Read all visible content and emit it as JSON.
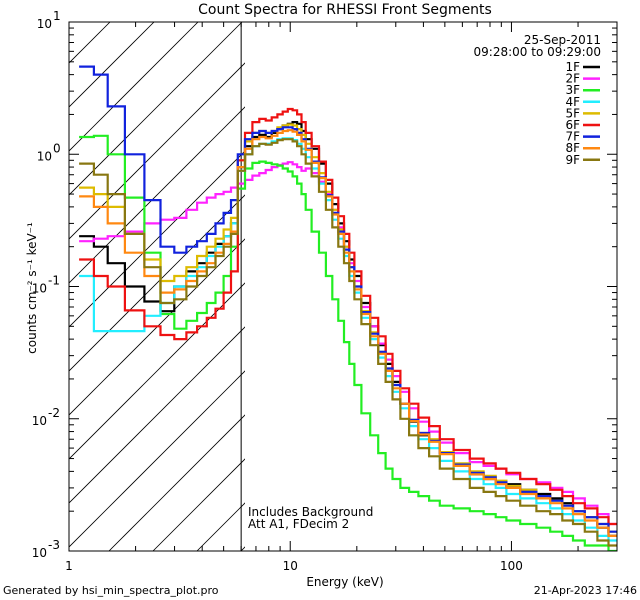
{
  "chart_data": {
    "type": "line",
    "title": "Count Spectra for RHESSI Front Segments",
    "xlabel": "Energy (keV)",
    "ylabel": "counts cm⁻² s⁻¹ keV⁻¹",
    "xscale": "log",
    "yscale": "log",
    "xlim": [
      1,
      300
    ],
    "ylim": [
      0.001,
      10
    ],
    "x_ticks": [
      {
        "value": 1,
        "label": "1"
      },
      {
        "value": 10,
        "label": "10"
      },
      {
        "value": 100,
        "label": "100"
      }
    ],
    "y_ticks": [
      {
        "value": 0.001,
        "label_base": "10",
        "label_exp": "-3"
      },
      {
        "value": 0.01,
        "label_base": "10",
        "label_exp": "-2"
      },
      {
        "value": 0.1,
        "label_base": "10",
        "label_exp": "-1"
      },
      {
        "value": 1,
        "label_base": "10",
        "label_exp": "0"
      },
      {
        "value": 10,
        "label_base": "10",
        "label_exp": "1"
      }
    ],
    "date": "25-Sep-2011",
    "time_range": "09:28:00 to 09:29:00",
    "excluded_below_keV": 6,
    "annotations": [
      "Includes Background",
      "Att A1, FDecim 2"
    ],
    "energy_keV": [
      1.2,
      1.4,
      1.6,
      2.0,
      2.4,
      2.8,
      3.2,
      3.6,
      4.0,
      4.4,
      4.8,
      5.2,
      5.6,
      6.0,
      6.5,
      7.0,
      7.5,
      8.0,
      8.5,
      9.0,
      9.5,
      10,
      10.5,
      11,
      11.5,
      12,
      13,
      14,
      15,
      16,
      17,
      18,
      19,
      20,
      22,
      24,
      26,
      28,
      30,
      33,
      36,
      40,
      45,
      50,
      60,
      70,
      80,
      90,
      100,
      120,
      140,
      160,
      180,
      200,
      230,
      260,
      290
    ],
    "series": [
      {
        "name": "1F",
        "color": "#000000",
        "values": [
          0.24,
          0.2,
          0.15,
          0.1,
          0.077,
          0.065,
          0.1,
          0.13,
          0.15,
          0.18,
          0.21,
          0.24,
          0.3,
          0.8,
          1.15,
          1.35,
          1.4,
          1.35,
          1.45,
          1.55,
          1.65,
          1.7,
          1.75,
          1.7,
          1.5,
          1.3,
          1.1,
          0.85,
          0.6,
          0.42,
          0.3,
          0.22,
          0.16,
          0.12,
          0.075,
          0.05,
          0.036,
          0.026,
          0.019,
          0.013,
          0.0095,
          0.0075,
          0.0068,
          0.0055,
          0.0045,
          0.0038,
          0.0035,
          0.0033,
          0.0032,
          0.0029,
          0.0027,
          0.0025,
          0.0023,
          0.002,
          0.0018,
          0.0015,
          0.0013
        ]
      },
      {
        "name": "2F",
        "color": "#ff22ff",
        "values": [
          0.22,
          0.23,
          0.24,
          0.26,
          0.3,
          0.32,
          0.33,
          0.38,
          0.43,
          0.47,
          0.5,
          0.52,
          0.56,
          0.6,
          0.64,
          0.69,
          0.72,
          0.76,
          0.8,
          0.83,
          0.85,
          0.87,
          0.84,
          0.8,
          0.75,
          0.78,
          0.72,
          0.62,
          0.5,
          0.38,
          0.28,
          0.2,
          0.15,
          0.11,
          0.07,
          0.05,
          0.037,
          0.028,
          0.021,
          0.016,
          0.012,
          0.0095,
          0.008,
          0.0066,
          0.0055,
          0.0047,
          0.0044,
          0.0042,
          0.0038,
          0.0035,
          0.0033,
          0.003,
          0.0028,
          0.0025,
          0.0022,
          0.0019,
          0.0016
        ]
      },
      {
        "name": "3F",
        "color": "#22ee22",
        "values": [
          1.35,
          1.38,
          1.0,
          0.47,
          0.18,
          0.062,
          0.048,
          0.055,
          0.063,
          0.075,
          0.09,
          0.12,
          0.2,
          0.55,
          0.78,
          0.86,
          0.88,
          0.86,
          0.84,
          0.82,
          0.78,
          0.74,
          0.68,
          0.6,
          0.5,
          0.38,
          0.26,
          0.18,
          0.12,
          0.08,
          0.055,
          0.038,
          0.026,
          0.018,
          0.011,
          0.0075,
          0.0055,
          0.0042,
          0.0035,
          0.003,
          0.0028,
          0.0026,
          0.0024,
          0.0022,
          0.0021,
          0.002,
          0.0019,
          0.0018,
          0.0017,
          0.0016,
          0.0015,
          0.0014,
          0.0013,
          0.0012,
          0.0011,
          0.0011,
          0.001
        ]
      },
      {
        "name": "4F",
        "color": "#22eeff",
        "values": [
          0.12,
          0.046,
          0.046,
          0.046,
          0.06,
          0.075,
          0.1,
          0.12,
          0.14,
          0.17,
          0.2,
          0.24,
          0.3,
          0.75,
          1.0,
          1.15,
          1.2,
          1.2,
          1.25,
          1.3,
          1.32,
          1.32,
          1.28,
          1.2,
          1.1,
          0.95,
          0.78,
          0.6,
          0.45,
          0.32,
          0.23,
          0.17,
          0.12,
          0.09,
          0.058,
          0.04,
          0.029,
          0.021,
          0.016,
          0.012,
          0.0088,
          0.007,
          0.006,
          0.0048,
          0.004,
          0.0035,
          0.0032,
          0.003,
          0.0027,
          0.0025,
          0.0023,
          0.0021,
          0.0019,
          0.0017,
          0.0015,
          0.0013,
          0.0012
        ]
      },
      {
        "name": "5F",
        "color": "#ddbb00",
        "values": [
          0.56,
          0.5,
          0.4,
          0.25,
          0.16,
          0.11,
          0.12,
          0.14,
          0.17,
          0.2,
          0.23,
          0.27,
          0.33,
          0.9,
          1.25,
          1.45,
          1.5,
          1.45,
          1.5,
          1.6,
          1.65,
          1.68,
          1.65,
          1.55,
          1.4,
          1.2,
          0.95,
          0.72,
          0.52,
          0.38,
          0.27,
          0.2,
          0.14,
          0.1,
          0.065,
          0.045,
          0.032,
          0.024,
          0.018,
          0.013,
          0.0098,
          0.0078,
          0.007,
          0.0056,
          0.0046,
          0.004,
          0.0037,
          0.0034,
          0.0031,
          0.0029,
          0.0026,
          0.0024,
          0.0022,
          0.002,
          0.0018,
          0.0016,
          0.0014
        ]
      },
      {
        "name": "6F",
        "color": "#ee1111",
        "values": [
          0.16,
          0.12,
          0.1,
          0.066,
          0.05,
          0.043,
          0.04,
          0.045,
          0.05,
          0.058,
          0.068,
          0.09,
          0.13,
          0.9,
          1.45,
          1.75,
          1.85,
          1.8,
          1.9,
          2.0,
          2.1,
          2.2,
          2.15,
          2.0,
          1.75,
          1.45,
          1.15,
          0.88,
          0.64,
          0.47,
          0.34,
          0.25,
          0.18,
          0.13,
          0.085,
          0.058,
          0.042,
          0.031,
          0.023,
          0.017,
          0.013,
          0.0102,
          0.0088,
          0.007,
          0.0058,
          0.005,
          0.0046,
          0.0042,
          0.0039,
          0.0035,
          0.0032,
          0.0029,
          0.0026,
          0.0023,
          0.0021,
          0.0018,
          0.0016
        ]
      },
      {
        "name": "7F",
        "color": "#1122dd",
        "values": [
          4.6,
          4.0,
          2.3,
          1.0,
          0.45,
          0.2,
          0.18,
          0.2,
          0.22,
          0.25,
          0.3,
          0.36,
          0.45,
          1.0,
          1.3,
          1.45,
          1.5,
          1.45,
          1.5,
          1.55,
          1.6,
          1.6,
          1.55,
          1.45,
          1.3,
          1.1,
          0.88,
          0.67,
          0.49,
          0.36,
          0.26,
          0.19,
          0.14,
          0.1,
          0.064,
          0.044,
          0.032,
          0.024,
          0.018,
          0.013,
          0.0098,
          0.0078,
          0.0068,
          0.0055,
          0.0045,
          0.0039,
          0.0036,
          0.0033,
          0.003,
          0.0028,
          0.0026,
          0.0024,
          0.0022,
          0.002,
          0.0018,
          0.0016,
          0.0014
        ]
      },
      {
        "name": "8F",
        "color": "#ff8811",
        "values": [
          0.48,
          0.4,
          0.3,
          0.18,
          0.12,
          0.09,
          0.095,
          0.11,
          0.13,
          0.15,
          0.18,
          0.21,
          0.26,
          0.8,
          1.1,
          1.3,
          1.35,
          1.32,
          1.38,
          1.45,
          1.5,
          1.52,
          1.48,
          1.4,
          1.25,
          1.08,
          0.86,
          0.66,
          0.48,
          0.35,
          0.25,
          0.18,
          0.13,
          0.095,
          0.062,
          0.042,
          0.031,
          0.023,
          0.017,
          0.013,
          0.0096,
          0.0076,
          0.0067,
          0.0054,
          0.0044,
          0.0038,
          0.0035,
          0.0032,
          0.003,
          0.0027,
          0.0025,
          0.0023,
          0.0021,
          0.0019,
          0.0017,
          0.0015,
          0.0013
        ]
      },
      {
        "name": "9F",
        "color": "#887711",
        "values": [
          0.85,
          0.7,
          0.5,
          0.25,
          0.14,
          0.075,
          0.08,
          0.1,
          0.12,
          0.14,
          0.17,
          0.2,
          0.25,
          0.75,
          1.0,
          1.15,
          1.2,
          1.18,
          1.22,
          1.28,
          1.3,
          1.3,
          1.25,
          1.15,
          1.0,
          0.85,
          0.68,
          0.52,
          0.38,
          0.28,
          0.2,
          0.15,
          0.11,
          0.08,
          0.052,
          0.036,
          0.026,
          0.019,
          0.014,
          0.01,
          0.0075,
          0.006,
          0.0052,
          0.0042,
          0.0035,
          0.003,
          0.0028,
          0.0026,
          0.0024,
          0.0022,
          0.002,
          0.0019,
          0.0017,
          0.0016,
          0.0014,
          0.0012,
          0.0011
        ]
      }
    ]
  },
  "footer": {
    "generated_by": "Generated by hsi_min_spectra_plot.pro",
    "timestamp": "21-Apr-2023 17:46"
  }
}
